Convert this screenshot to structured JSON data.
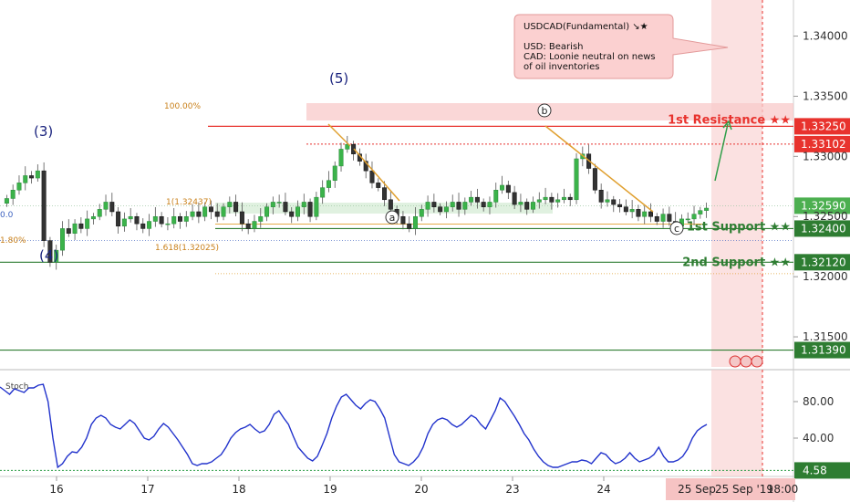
{
  "chart_data": {
    "type": "candlestick",
    "symbol_note": {
      "title": "USDCAD(Fundamental) ↘★",
      "lines": [
        "USD: Bearish",
        "CAD: Loonie neutral on news",
        "of oil inventories"
      ]
    },
    "price_axis": {
      "ticks": [
        "1.34000",
        "1.33500",
        "1.33000",
        "1.32500",
        "1.32000",
        "1.31500"
      ],
      "ylim": [
        1.3125,
        1.343
      ]
    },
    "levels": [
      {
        "name": "1st Resistance ★★",
        "price": 1.3325,
        "label": "1.33250",
        "color": "#e8322d"
      },
      {
        "name": "",
        "price": 1.33102,
        "label": "1.33102",
        "color": "#e8322d"
      },
      {
        "name": "",
        "price": 1.3259,
        "label": "1.32590",
        "color": "#4caf50"
      },
      {
        "name": "1st Support ★★",
        "price": 1.324,
        "label": "1.32400",
        "color": "#2e7d32"
      },
      {
        "name": "2nd Support ★★",
        "price": 1.3212,
        "label": "1.32120",
        "color": "#2e7d32"
      },
      {
        "name": "",
        "price": 1.3139,
        "label": "1.31390",
        "color": "#2e7d32"
      }
    ],
    "fib_labels": {
      "top": "100.00%",
      "mid": "1(1.32437)",
      "ext": "1.618(1.32025)",
      "left_a": "0.0",
      "left_b": "1.80%"
    },
    "wave_labels": {
      "w3": "(3)",
      "w4": "(4)",
      "w5": "(5)",
      "a": "a",
      "b": "b",
      "c": "c"
    },
    "dates": [
      "16",
      "17",
      "18",
      "19",
      "20",
      "23",
      "24",
      "25 Sep",
      "25 Sep '19",
      "18:00"
    ],
    "close_prices": [
      1.3265,
      1.3272,
      1.3278,
      1.3284,
      1.3282,
      1.3288,
      1.323,
      1.3212,
      1.3222,
      1.324,
      1.3236,
      1.3244,
      1.324,
      1.3248,
      1.325,
      1.3256,
      1.3262,
      1.3254,
      1.3242,
      1.3248,
      1.325,
      1.3244,
      1.324,
      1.3246,
      1.325,
      1.3244,
      1.3244,
      1.325,
      1.3246,
      1.325,
      1.3254,
      1.325,
      1.3258,
      1.3254,
      1.325,
      1.3258,
      1.3262,
      1.3254,
      1.3244,
      1.324,
      1.3246,
      1.325,
      1.3258,
      1.3262,
      1.3262,
      1.3254,
      1.325,
      1.3258,
      1.3262,
      1.325,
      1.3266,
      1.3274,
      1.328,
      1.3292,
      1.3306,
      1.331,
      1.3302,
      1.3296,
      1.3288,
      1.3278,
      1.3274,
      1.3264,
      1.3256,
      1.325,
      1.3244,
      1.324,
      1.325,
      1.3256,
      1.3262,
      1.3258,
      1.3254,
      1.3258,
      1.3262,
      1.3256,
      1.3262,
      1.3266,
      1.3262,
      1.3258,
      1.3262,
      1.3272,
      1.3276,
      1.327,
      1.326,
      1.3262,
      1.3256,
      1.3262,
      1.3264,
      1.3266,
      1.3262,
      1.3264,
      1.3266,
      1.3264,
      1.3298,
      1.3302,
      1.329,
      1.3272,
      1.3262,
      1.3264,
      1.326,
      1.3258,
      1.3254,
      1.3256,
      1.325,
      1.3254,
      1.325,
      1.3246,
      1.3252,
      1.3246,
      1.3242,
      1.3248,
      1.3248,
      1.3252,
      1.3255,
      1.3257
    ],
    "stoch": {
      "label": "Stoch",
      "ticks": [
        "80.00",
        "40.00"
      ],
      "level_label": "4.58",
      "ylim": [
        0,
        110
      ],
      "values": [
        96,
        92,
        88,
        94,
        92,
        90,
        95,
        95,
        98,
        99,
        80,
        40,
        8,
        12,
        20,
        25,
        24,
        30,
        40,
        55,
        62,
        65,
        62,
        55,
        52,
        50,
        55,
        60,
        56,
        48,
        40,
        38,
        42,
        50,
        56,
        52,
        45,
        38,
        30,
        22,
        12,
        10,
        12,
        12,
        14,
        18,
        22,
        30,
        40,
        46,
        50,
        52,
        55,
        50,
        46,
        48,
        55,
        66,
        70,
        62,
        55,
        42,
        30,
        24,
        18,
        15,
        20,
        32,
        45,
        62,
        75,
        85,
        88,
        82,
        76,
        72,
        78,
        82,
        80,
        72,
        62,
        42,
        22,
        14,
        12,
        10,
        14,
        20,
        30,
        45,
        55,
        60,
        62,
        60,
        55,
        52,
        55,
        60,
        65,
        62,
        55,
        50,
        60,
        70,
        84,
        80,
        72,
        64,
        55,
        45,
        38,
        28,
        20,
        14,
        10,
        8,
        8,
        10,
        12,
        14,
        14,
        16,
        15,
        12,
        18,
        24,
        22,
        16,
        12,
        14,
        18,
        24,
        18,
        14,
        16,
        18,
        22,
        30,
        20,
        14,
        14,
        16,
        20,
        28,
        40,
        48,
        52,
        55
      ]
    }
  }
}
